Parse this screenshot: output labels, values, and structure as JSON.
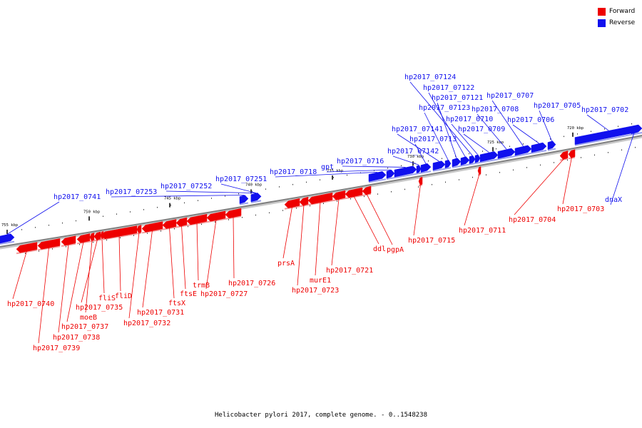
{
  "legend": {
    "forward": {
      "label": "Forward",
      "color": "#ee0000"
    },
    "reverse": {
      "label": "Reverse",
      "color": "#1010ee"
    }
  },
  "caption": "Helicobacter pylori 2017, complete genome. - 0..1548238",
  "backbone_color": "#808080",
  "scale_labels": [
    "755 kbp",
    "750 kbp",
    "745 kbp",
    "740 kbp",
    "735 kbp",
    "730 kbp",
    "725 kbp",
    "720 kbp"
  ],
  "genes": [
    {
      "name": "hp2017_0741",
      "strand": "reverse"
    },
    {
      "name": "hp2017_07253",
      "strand": "reverse"
    },
    {
      "name": "hp2017_07252",
      "strand": "reverse"
    },
    {
      "name": "hp2017_07251",
      "strand": "reverse"
    },
    {
      "name": "hp2017_0718",
      "strand": "reverse"
    },
    {
      "name": "gpt",
      "strand": "reverse"
    },
    {
      "name": "hp2017_0716",
      "strand": "reverse"
    },
    {
      "name": "hp2017_07142",
      "strand": "reverse"
    },
    {
      "name": "hp2017_0713",
      "strand": "reverse"
    },
    {
      "name": "hp2017_07141",
      "strand": "reverse"
    },
    {
      "name": "hp2017_07123",
      "strand": "reverse"
    },
    {
      "name": "hp2017_07121",
      "strand": "reverse"
    },
    {
      "name": "hp2017_07122",
      "strand": "reverse"
    },
    {
      "name": "hp2017_07124",
      "strand": "reverse"
    },
    {
      "name": "hp2017_0710",
      "strand": "reverse"
    },
    {
      "name": "hp2017_0709",
      "strand": "reverse"
    },
    {
      "name": "hp2017_0708",
      "strand": "reverse"
    },
    {
      "name": "hp2017_0707",
      "strand": "reverse"
    },
    {
      "name": "hp2017_0706",
      "strand": "reverse"
    },
    {
      "name": "hp2017_0705",
      "strand": "reverse"
    },
    {
      "name": "hp2017_0702",
      "strand": "reverse"
    },
    {
      "name": "dnaX",
      "strand": "reverse"
    },
    {
      "name": "hp2017_0740",
      "strand": "forward"
    },
    {
      "name": "hp2017_0739",
      "strand": "forward"
    },
    {
      "name": "hp2017_0738",
      "strand": "forward"
    },
    {
      "name": "hp2017_0737",
      "strand": "forward"
    },
    {
      "name": "moeB",
      "strand": "forward"
    },
    {
      "name": "hp2017_0735",
      "strand": "forward"
    },
    {
      "name": "fliS",
      "strand": "forward"
    },
    {
      "name": "fliD",
      "strand": "forward"
    },
    {
      "name": "hp2017_0732",
      "strand": "forward"
    },
    {
      "name": "hp2017_0731",
      "strand": "forward"
    },
    {
      "name": "ftsX",
      "strand": "forward"
    },
    {
      "name": "ftsE",
      "strand": "forward"
    },
    {
      "name": "trmB",
      "strand": "forward"
    },
    {
      "name": "hp2017_0727",
      "strand": "forward"
    },
    {
      "name": "hp2017_0726",
      "strand": "forward"
    },
    {
      "name": "prsA",
      "strand": "forward"
    },
    {
      "name": "hp2017_0723",
      "strand": "forward"
    },
    {
      "name": "murE1",
      "strand": "forward"
    },
    {
      "name": "hp2017_0721",
      "strand": "forward"
    },
    {
      "name": "ddl",
      "strand": "forward"
    },
    {
      "name": "pgpA",
      "strand": "forward"
    },
    {
      "name": "hp2017_0715",
      "strand": "forward"
    },
    {
      "name": "hp2017_0711",
      "strand": "forward"
    },
    {
      "name": "hp2017_0704",
      "strand": "forward"
    },
    {
      "name": "hp2017_0703",
      "strand": "forward"
    }
  ]
}
